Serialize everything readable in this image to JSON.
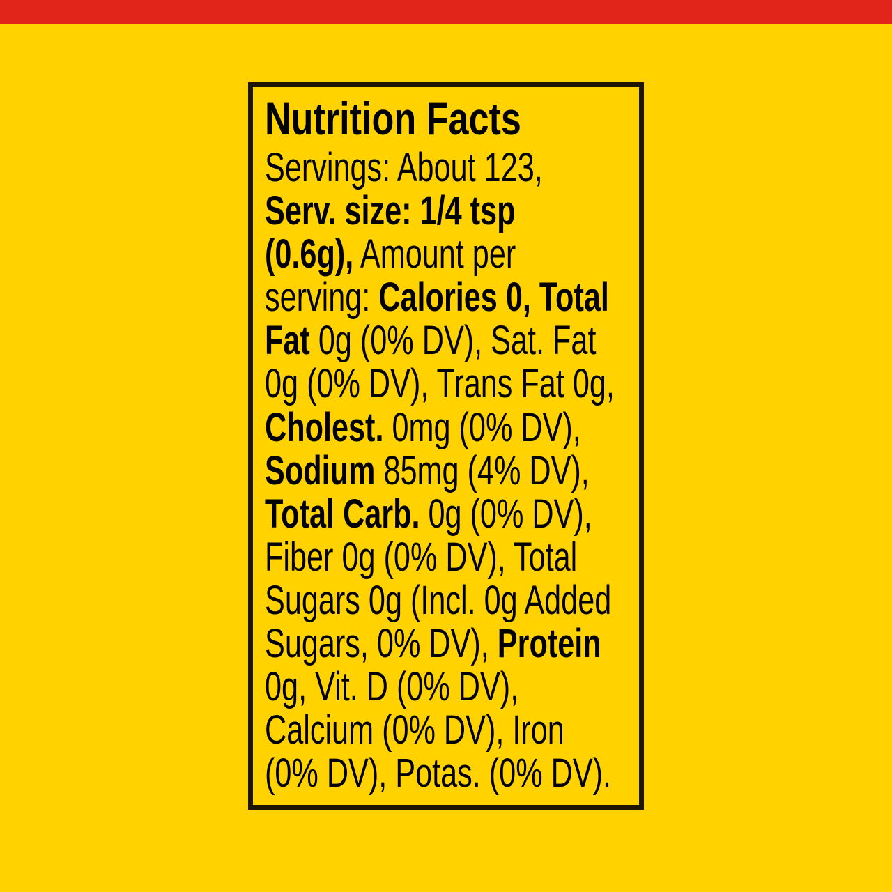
{
  "colors": {
    "background": "#FFD200",
    "top_band": "#E1251B",
    "border": "#1E1600",
    "text": "#000000"
  },
  "title": "Nutrition Facts",
  "lines": [
    [
      {
        "text": "Servings: About 123,",
        "bold": false
      }
    ],
    [
      {
        "text": "Serv. size: 1/4 tsp",
        "bold": true
      }
    ],
    [
      {
        "text": "(0.6g),",
        "bold": true
      },
      {
        "text": " Amount per",
        "bold": false
      }
    ],
    [
      {
        "text": "serving: ",
        "bold": false
      },
      {
        "text": "Calories 0, Total",
        "bold": true
      }
    ],
    [
      {
        "text": "Fat",
        "bold": true
      },
      {
        "text": " 0g (0% DV), Sat. Fat",
        "bold": false
      }
    ],
    [
      {
        "text": "0g (0% DV), Trans Fat 0g,",
        "bold": false
      }
    ],
    [
      {
        "text": "Cholest.",
        "bold": true
      },
      {
        "text": " 0mg (0% DV),",
        "bold": false
      }
    ],
    [
      {
        "text": "Sodium",
        "bold": true
      },
      {
        "text": " 85mg (4% DV),",
        "bold": false
      }
    ],
    [
      {
        "text": "Total Carb.",
        "bold": true
      },
      {
        "text": " 0g (0% DV),",
        "bold": false
      }
    ],
    [
      {
        "text": "Fiber 0g (0% DV), Total",
        "bold": false
      }
    ],
    [
      {
        "text": "Sugars 0g (Incl. 0g Added",
        "bold": false
      }
    ],
    [
      {
        "text": "Sugars, 0% DV), ",
        "bold": false
      },
      {
        "text": "Protein",
        "bold": true
      }
    ],
    [
      {
        "text": "0g, Vit. D (0% DV),",
        "bold": false
      }
    ],
    [
      {
        "text": "Calcium (0% DV), Iron",
        "bold": false
      }
    ],
    [
      {
        "text": "(0% DV), Potas. (0% DV).",
        "bold": false
      }
    ]
  ]
}
